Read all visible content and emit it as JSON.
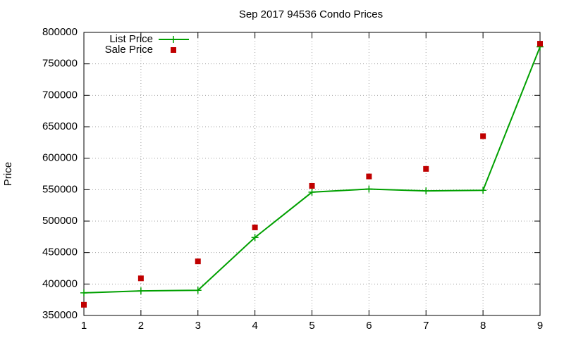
{
  "chart_data": {
    "type": "line",
    "title": "Sep 2017 94536 Condo Prices",
    "y_label": "Price",
    "x": [
      1,
      2,
      3,
      4,
      5,
      6,
      7,
      8,
      9
    ],
    "series": [
      {
        "name": "List Price",
        "color": "#00a000",
        "line": true,
        "marker": "plus",
        "values": [
          386000,
          389000,
          390000,
          474000,
          546000,
          551000,
          548000,
          549000,
          777000
        ]
      },
      {
        "name": "Sale Price",
        "color": "#c00000",
        "line": false,
        "marker": "square",
        "values": [
          367000,
          409000,
          436000,
          490000,
          556000,
          571000,
          583000,
          635000,
          782000
        ]
      }
    ],
    "xlim": [
      1,
      9
    ],
    "xticks": [
      1,
      2,
      3,
      4,
      5,
      6,
      7,
      8,
      9
    ],
    "ylim": [
      350000,
      800000
    ],
    "yticks": [
      350000,
      400000,
      450000,
      500000,
      550000,
      600000,
      650000,
      700000,
      750000,
      800000
    ],
    "grid": true,
    "legend": "top-left"
  }
}
